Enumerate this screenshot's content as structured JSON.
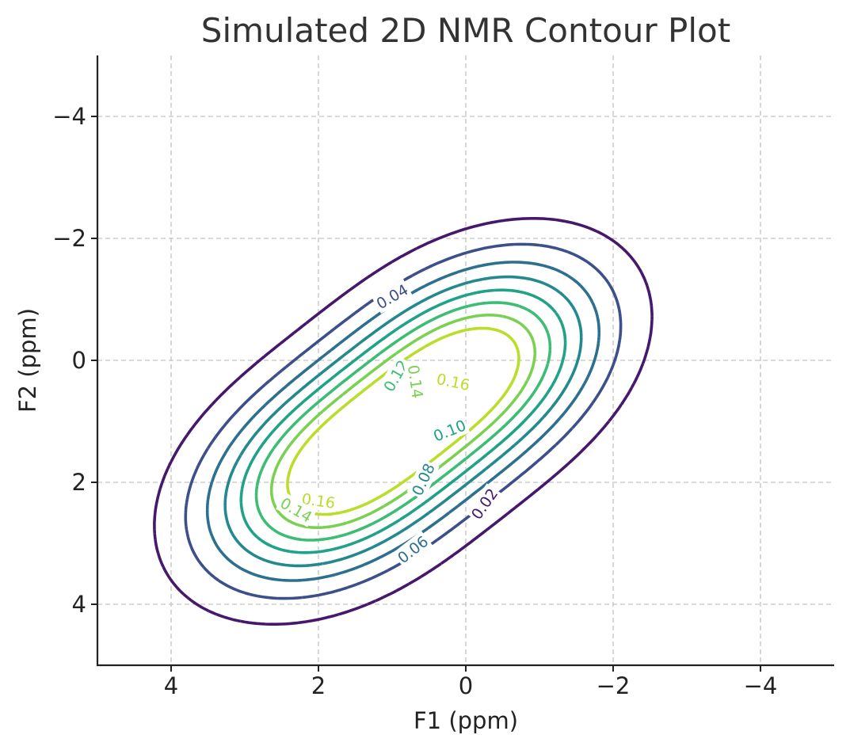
{
  "chart_data": {
    "type": "contour",
    "title": "Simulated 2D NMR Contour Plot",
    "xlabel": "F1 (ppm)",
    "ylabel": "F2 (ppm)",
    "xlim": [
      5,
      -5
    ],
    "ylim": [
      5,
      -5
    ],
    "x_inverted": true,
    "y_inverted": true,
    "xticks": [
      4,
      2,
      0,
      -2,
      -4
    ],
    "yticks": [
      -4,
      -2,
      0,
      2,
      4
    ],
    "xtick_labels": [
      "4",
      "2",
      "0",
      "−2",
      "−4"
    ],
    "ytick_labels": [
      "−4",
      "−2",
      "0",
      "2",
      "4"
    ],
    "grid": true,
    "peaks": [
      {
        "f1": 1.8,
        "f2": 1.9,
        "max_level": 0.16
      },
      {
        "f1": -0.1,
        "f2": 0.1,
        "max_level": 0.16
      }
    ],
    "levels": [
      0.02,
      0.04,
      0.06,
      0.08,
      0.1,
      0.12,
      0.14,
      0.16
    ],
    "level_labels": [
      {
        "text": "0.04",
        "level": 0.04,
        "f1": 1.0,
        "f2": -1.05,
        "angle": -30
      },
      {
        "text": "0.12",
        "level": 0.12,
        "f1": 0.95,
        "f2": 0.25,
        "angle": -60
      },
      {
        "text": "0.14",
        "level": 0.14,
        "f1": 0.68,
        "f2": 0.35,
        "angle": 82
      },
      {
        "text": "0.16",
        "level": 0.16,
        "f1": 0.17,
        "f2": 0.35,
        "angle": 12
      },
      {
        "text": "0.10",
        "level": 0.1,
        "f1": 0.22,
        "f2": 1.15,
        "angle": -22
      },
      {
        "text": "0.08",
        "level": 0.08,
        "f1": 0.58,
        "f2": 1.95,
        "angle": -65
      },
      {
        "text": "0.06",
        "level": 0.06,
        "f1": 0.72,
        "f2": 3.1,
        "angle": -38
      },
      {
        "text": "0.02",
        "level": 0.02,
        "f1": -0.25,
        "f2": 2.35,
        "angle": -55
      },
      {
        "text": "0.16",
        "level": 0.16,
        "f1": 2.0,
        "f2": 2.3,
        "angle": 8
      },
      {
        "text": "0.14",
        "level": 0.14,
        "f1": 2.3,
        "f2": 2.45,
        "angle": 30
      }
    ],
    "colors": [
      "#46186b",
      "#3b4f8a",
      "#2d6f8e",
      "#23898e",
      "#1fa287",
      "#3cbc74",
      "#7ad151",
      "#b8de29"
    ]
  }
}
